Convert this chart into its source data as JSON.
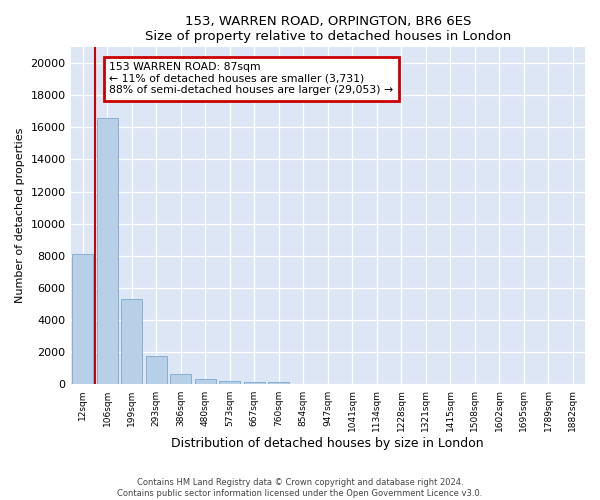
{
  "title": "153, WARREN ROAD, ORPINGTON, BR6 6ES",
  "subtitle": "Size of property relative to detached houses in London",
  "xlabel": "Distribution of detached houses by size in London",
  "ylabel": "Number of detached properties",
  "bar_color": "#b8cfe8",
  "bar_edge_color": "#7aaace",
  "background_color": "#dce6f5",
  "annotation_box_color": "#cc0000",
  "property_line_color": "#cc0000",
  "property_label": "153 WARREN ROAD: 87sqm",
  "annotation_line1": "← 11% of detached houses are smaller (3,731)",
  "annotation_line2": "88% of semi-detached houses are larger (29,053) →",
  "categories": [
    "12sqm",
    "106sqm",
    "199sqm",
    "293sqm",
    "386sqm",
    "480sqm",
    "573sqm",
    "667sqm",
    "760sqm",
    "854sqm",
    "947sqm",
    "1041sqm",
    "1134sqm",
    "1228sqm",
    "1321sqm",
    "1415sqm",
    "1508sqm",
    "1602sqm",
    "1695sqm",
    "1789sqm",
    "1882sqm"
  ],
  "values": [
    8100,
    16600,
    5300,
    1800,
    650,
    350,
    200,
    150,
    150,
    0,
    0,
    0,
    0,
    0,
    0,
    0,
    0,
    0,
    0,
    0,
    0
  ],
  "ylim": [
    0,
    21000
  ],
  "yticks": [
    0,
    2000,
    4000,
    6000,
    8000,
    10000,
    12000,
    14000,
    16000,
    18000,
    20000
  ],
  "footer_line1": "Contains HM Land Registry data © Crown copyright and database right 2024.",
  "footer_line2": "Contains public sector information licensed under the Open Government Licence v3.0."
}
